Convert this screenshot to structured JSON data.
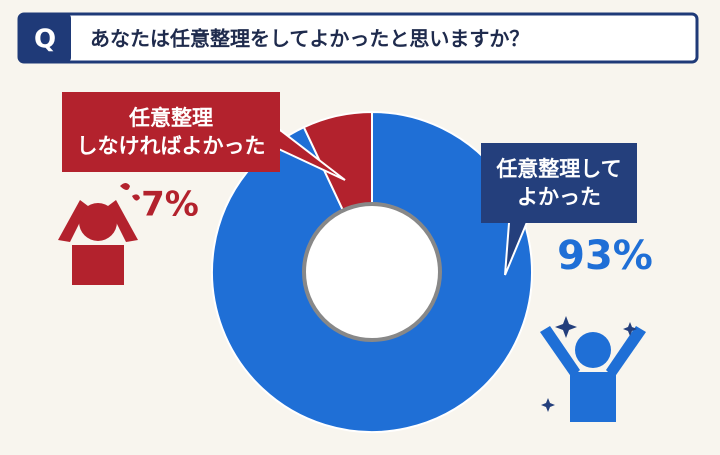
{
  "chart_data": {
    "type": "pie",
    "title_marker": "Q",
    "title": "あなたは任意整理をしてよかったと思いますか？",
    "categories": [
      "任意整理して\nよかった",
      "任意整理\nしなければよかった"
    ],
    "values": [
      93,
      7
    ],
    "value_labels": [
      "93%",
      "7%"
    ],
    "colors": [
      "#1f6fd6",
      "#b3222d"
    ],
    "label_box_colors": [
      "#243f7c",
      "#b3222d"
    ]
  }
}
